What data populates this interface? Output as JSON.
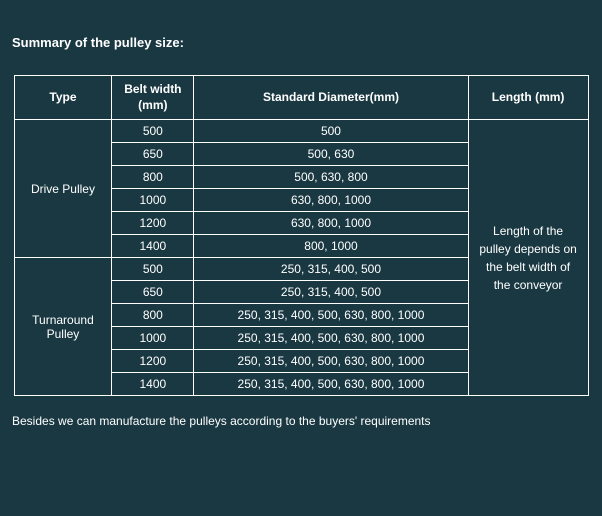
{
  "title": "Summary of the pulley size:",
  "columns": {
    "type": "Type",
    "belt_width": "Belt width (mm)",
    "standard_diameter": "Standard Diameter(mm)",
    "length": "Length (mm)"
  },
  "groups": [
    {
      "label": "Drive Pulley",
      "rows": [
        {
          "bw": "500",
          "sd": "500"
        },
        {
          "bw": "650",
          "sd": "500, 630"
        },
        {
          "bw": "800",
          "sd": "500, 630, 800"
        },
        {
          "bw": "1000",
          "sd": "630, 800, 1000"
        },
        {
          "bw": "1200",
          "sd": "630, 800, 1000"
        },
        {
          "bw": "1400",
          "sd": "800, 1000"
        }
      ]
    },
    {
      "label": "Turnaround Pulley",
      "rows": [
        {
          "bw": "500",
          "sd": "250, 315, 400, 500"
        },
        {
          "bw": "650",
          "sd": "250, 315, 400, 500"
        },
        {
          "bw": "800",
          "sd": "250, 315, 400, 500, 630, 800, 1000"
        },
        {
          "bw": "1000",
          "sd": "250, 315, 400, 500, 630, 800, 1000"
        },
        {
          "bw": "1200",
          "sd": "250, 315, 400, 500, 630, 800, 1000"
        },
        {
          "bw": "1400",
          "sd": "250, 315, 400, 500, 630, 800, 1000"
        }
      ]
    }
  ],
  "length_note": "Length of the pulley depends on the belt width of the conveyor",
  "footer": "Besides we can manufacture the pulleys according to the buyers' requirements",
  "style": {
    "background_color": "#1a3842",
    "text_color": "#ffffff",
    "border_color": "#ffffff",
    "header_fontsize": 12,
    "cell_fontsize": 12,
    "heading_fontsize": 13,
    "font_family": "Arial"
  }
}
